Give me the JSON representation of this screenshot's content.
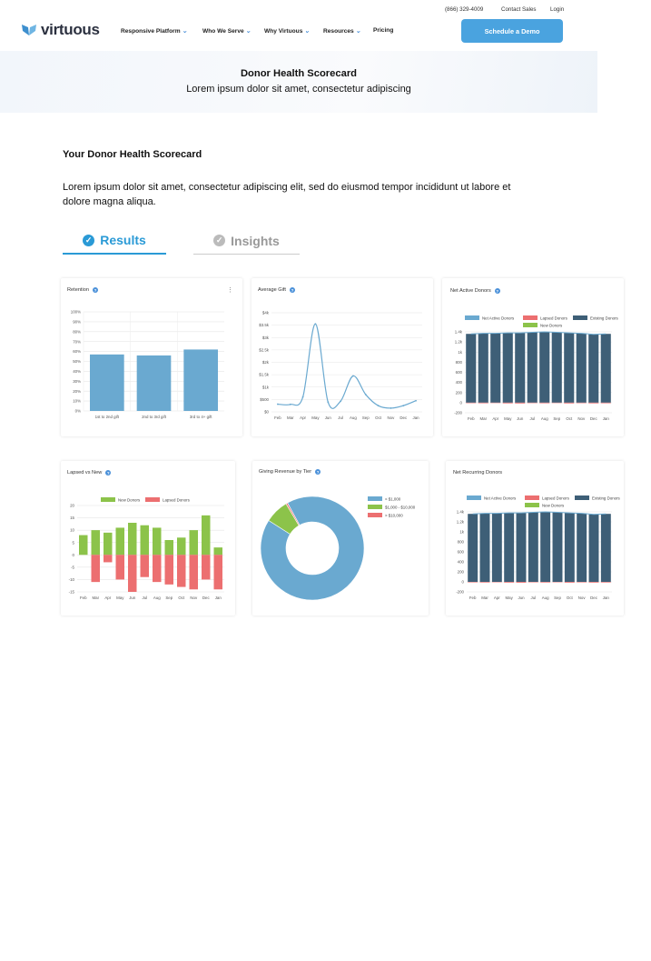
{
  "topbar": {
    "phone": "(866) 329-4009",
    "contact": "Contact Sales",
    "login": "Login"
  },
  "logo": {
    "text": "virtuous"
  },
  "nav": {
    "items": [
      "Responsive Platform",
      "Who We Serve",
      "Why Virtuous",
      "Resources",
      "Pricing"
    ],
    "cta": "Schedule a Demo"
  },
  "hero": {
    "title": "Donor Health Scorecard",
    "subtitle": "Lorem ipsum dolor sit amet, consectetur adipiscing"
  },
  "section": {
    "title": "Your Donor Health Scorecard",
    "body": "Lorem ipsum dolor sit amet, consectetur adipiscing elit, sed do eiusmod tempor incididunt ut labore et dolore magna aliqua."
  },
  "tabs": {
    "results": "Results",
    "insights": "Insights"
  },
  "colors": {
    "accent": "#2a9ad6",
    "bar": "#6aa9d0",
    "green": "#8cc34a",
    "red": "#ec6f70",
    "navy": "#3e5f77"
  },
  "chart_data": [
    {
      "type": "bar",
      "title": "Retention",
      "categories": [
        "1st to 2nd gift",
        "2nd to 3rd gift",
        "3rd to 4+ gift"
      ],
      "values": [
        57,
        56,
        62
      ],
      "ylim": [
        0,
        100
      ],
      "yticks": [
        "0%",
        "10%",
        "20%",
        "30%",
        "40%",
        "50%",
        "60%",
        "70%",
        "80%",
        "90%",
        "100%"
      ]
    },
    {
      "type": "line",
      "title": "Average Gift",
      "categories": [
        "Feb",
        "Mar",
        "Apr",
        "May",
        "Jun",
        "Jul",
        "Aug",
        "Sep",
        "Oct",
        "Nov",
        "Dec",
        "Jan"
      ],
      "values": [
        310,
        300,
        600,
        3550,
        400,
        430,
        1450,
        700,
        250,
        150,
        250,
        450
      ],
      "ylim": [
        0,
        4000
      ],
      "yticks": [
        "$0",
        "$500",
        "$1k",
        "$1.5k",
        "$2k",
        "$2.5k",
        "$3k",
        "$3.5k",
        "$4k"
      ]
    },
    {
      "type": "bar",
      "title": "Net Active Donors",
      "legend": [
        "Net Active Donors",
        "Lapsed Donors",
        "Existing Donors",
        "New Donors"
      ],
      "categories": [
        "Feb",
        "Mar",
        "Apr",
        "May",
        "Jun",
        "Jul",
        "Aug",
        "Sep",
        "Oct",
        "Nov",
        "Dec",
        "Jan"
      ],
      "series": [
        {
          "name": "Existing Donors",
          "values": [
            1360,
            1370,
            1370,
            1380,
            1380,
            1390,
            1400,
            1390,
            1380,
            1370,
            1350,
            1360
          ]
        },
        {
          "name": "Net Active Donors",
          "values": [
            1360,
            1370,
            1370,
            1380,
            1380,
            1390,
            1400,
            1390,
            1380,
            1370,
            1350,
            1360
          ]
        },
        {
          "name": "Lapsed Donors",
          "values": [
            -10,
            -12,
            -8,
            -14,
            -16,
            -9,
            -12,
            -8,
            -15,
            -10,
            -14,
            -12
          ]
        }
      ],
      "ylim": [
        -200,
        1400
      ],
      "yticks": [
        "-200",
        "0",
        "200",
        "400",
        "600",
        "800",
        "1k",
        "1.2k",
        "1.4k"
      ]
    },
    {
      "type": "bar",
      "title": "Lapsed vs New",
      "legend": [
        "New Donors",
        "Lapsed Donors"
      ],
      "categories": [
        "Feb",
        "Mar",
        "Apr",
        "May",
        "Jun",
        "Jul",
        "Aug",
        "Sep",
        "Oct",
        "Nov",
        "Dec",
        "Jan"
      ],
      "series": [
        {
          "name": "New Donors",
          "values": [
            8,
            10,
            9,
            11,
            13,
            12,
            11,
            6,
            7,
            10,
            16,
            3
          ]
        },
        {
          "name": "Lapsed Donors",
          "values": [
            0,
            -11,
            -3,
            -10,
            -15,
            -9,
            -11,
            -12,
            -13,
            -14,
            -10,
            -14
          ]
        }
      ],
      "ylim": [
        -15,
        20
      ],
      "yticks": [
        "-15",
        "-10",
        "-5",
        "0",
        "5",
        "10",
        "15",
        "20"
      ]
    },
    {
      "type": "pie",
      "title": "Giving Revenue by Tier",
      "labels": [
        "< $1,000",
        "$1,000 - $10,000",
        "> $10,000"
      ],
      "values": [
        92,
        7.5,
        0.5
      ]
    },
    {
      "type": "bar",
      "title": "Net Recurring Donors",
      "legend": [
        "Net Active Donors",
        "Lapsed Donors",
        "Existing Donors",
        "New Donors"
      ],
      "categories": [
        "Feb",
        "Mar",
        "Apr",
        "May",
        "Jun",
        "Jul",
        "Aug",
        "Sep",
        "Oct",
        "Nov",
        "Dec",
        "Jan"
      ],
      "series": [
        {
          "name": "Existing Donors",
          "values": [
            1360,
            1370,
            1370,
            1380,
            1380,
            1390,
            1400,
            1390,
            1380,
            1370,
            1350,
            1360
          ]
        },
        {
          "name": "Net Active Donors",
          "values": [
            1360,
            1370,
            1370,
            1380,
            1380,
            1390,
            1400,
            1390,
            1380,
            1370,
            1350,
            1360
          ]
        },
        {
          "name": "Lapsed Donors",
          "values": [
            -10,
            -12,
            -8,
            -14,
            -16,
            -9,
            -12,
            -8,
            -15,
            -10,
            -14,
            -12
          ]
        }
      ],
      "ylim": [
        -200,
        1400
      ],
      "yticks": [
        "-200",
        "0",
        "200",
        "400",
        "600",
        "800",
        "1k",
        "1.2k",
        "1.4k"
      ]
    }
  ]
}
